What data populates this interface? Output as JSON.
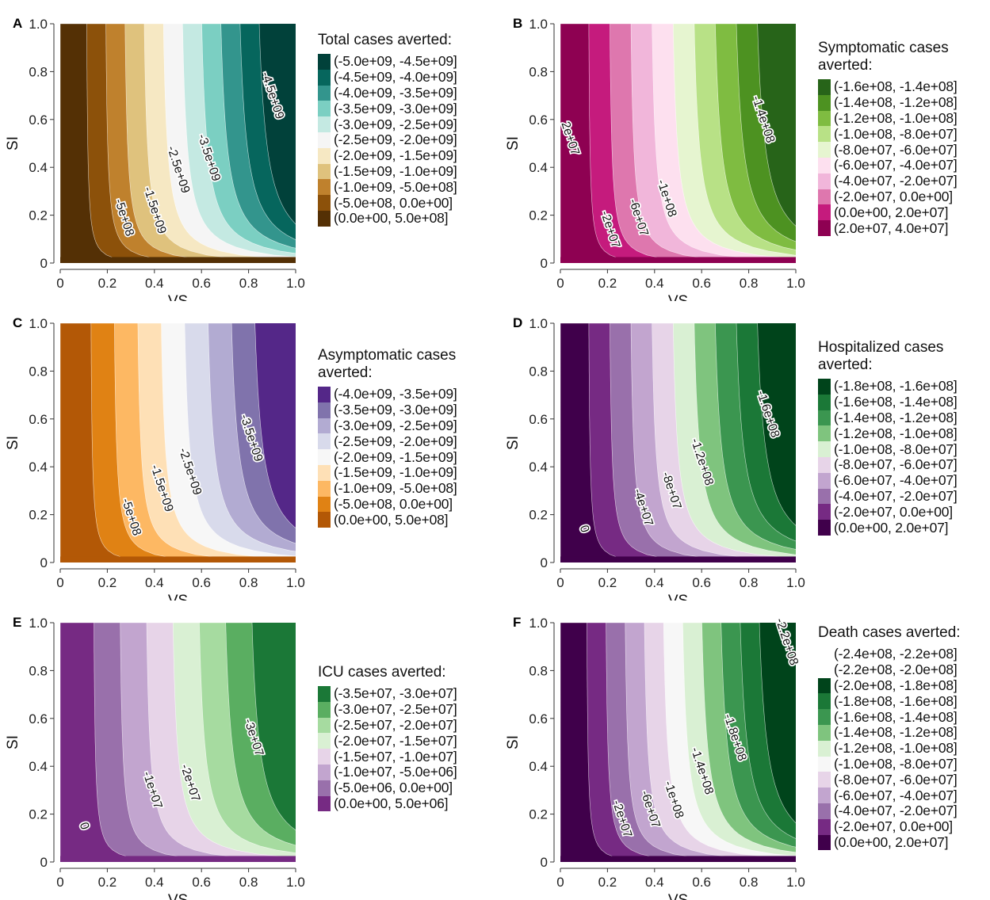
{
  "chart_data": [
    {
      "panel": "A",
      "type": "contour",
      "xlabel": "VS",
      "ylabel": "SI",
      "xlim": [
        0,
        1
      ],
      "ylim": [
        0,
        1
      ],
      "x_ticks": [
        "0",
        "0.2",
        "0.4",
        "0.6",
        "0.8",
        "1.0"
      ],
      "y_ticks": [
        "0",
        "0.2",
        "0.4",
        "0.6",
        "0.8",
        "1.0"
      ],
      "legend_title": "Total cases averted:",
      "legend": [
        {
          "label": "(-5.0e+09, -4.5e+09]",
          "color": "#01413a"
        },
        {
          "label": "(-4.5e+09, -4.0e+09]",
          "color": "#06665d"
        },
        {
          "label": "(-4.0e+09, -3.5e+09]",
          "color": "#33958d"
        },
        {
          "label": "(-3.5e+09, -3.0e+09]",
          "color": "#7bcfc2"
        },
        {
          "label": "(-3.0e+09, -2.5e+09]",
          "color": "#c4e9e2"
        },
        {
          "label": "(-2.5e+09, -2.0e+09]",
          "color": "#f5f5f5"
        },
        {
          "label": "(-2.0e+09, -1.5e+09]",
          "color": "#f6e8c3"
        },
        {
          "label": "(-1.5e+09, -1.0e+09]",
          "color": "#dfc27d"
        },
        {
          "label": "(-1.0e+09, -5.0e+08]",
          "color": "#bf812d"
        },
        {
          "label": "(-5.0e+08, 0.0e+00]",
          "color": "#8c510a"
        },
        {
          "label": "(0.0e+00, 5.0e+08]",
          "color": "#543005"
        }
      ],
      "contour_labels": [
        {
          "text": "-5e+08",
          "vs": 0.27,
          "si": 0.19
        },
        {
          "text": "-1.5e+09",
          "vs": 0.4,
          "si": 0.22
        },
        {
          "text": "-2.5e+09",
          "vs": 0.5,
          "si": 0.39
        },
        {
          "text": "-3.5e+09",
          "vs": 0.63,
          "si": 0.44
        },
        {
          "text": "-4.5e+09",
          "vs": 0.9,
          "si": 0.7
        }
      ]
    },
    {
      "panel": "B",
      "type": "contour",
      "xlabel": "VS",
      "ylabel": "SI",
      "xlim": [
        0,
        1
      ],
      "ylim": [
        0,
        1
      ],
      "x_ticks": [
        "0",
        "0.2",
        "0.4",
        "0.6",
        "0.8",
        "1.0"
      ],
      "y_ticks": [
        "0",
        "0.2",
        "0.4",
        "0.6",
        "0.8",
        "1.0"
      ],
      "legend_title": "Symptomatic cases averted:",
      "legend": [
        {
          "label": "(-1.6e+08, -1.4e+08]",
          "color": "#276419"
        },
        {
          "label": "(-1.4e+08, -1.2e+08]",
          "color": "#4d9221"
        },
        {
          "label": "(-1.2e+08, -1.0e+08]",
          "color": "#7fbc41"
        },
        {
          "label": "(-1.0e+08, -8.0e+07]",
          "color": "#b8e186"
        },
        {
          "label": "(-8.0e+07, -6.0e+07]",
          "color": "#e6f5d0"
        },
        {
          "label": "(-6.0e+07, -4.0e+07]",
          "color": "#fde0ef"
        },
        {
          "label": "(-4.0e+07, -2.0e+07]",
          "color": "#f1b6da"
        },
        {
          "label": "(-2.0e+07, 0.0e+00]",
          "color": "#de77ae"
        },
        {
          "label": "(0.0e+00, 2.0e+07]",
          "color": "#c51b7d"
        },
        {
          "label": "(2.0e+07, 4.0e+07]",
          "color": "#8e0152"
        }
      ],
      "contour_labels": [
        {
          "text": "2e+07",
          "vs": 0.04,
          "si": 0.52
        },
        {
          "text": "-2e+07",
          "vs": 0.21,
          "si": 0.14
        },
        {
          "text": "-6e+07",
          "vs": 0.33,
          "si": 0.19
        },
        {
          "text": "-1e+08",
          "vs": 0.45,
          "si": 0.27
        },
        {
          "text": "-1.4e+08",
          "vs": 0.86,
          "si": 0.6
        }
      ]
    },
    {
      "panel": "C",
      "type": "contour",
      "xlabel": "VS",
      "ylabel": "SI",
      "xlim": [
        0,
        1
      ],
      "ylim": [
        0,
        1
      ],
      "x_ticks": [
        "0",
        "0.2",
        "0.4",
        "0.6",
        "0.8",
        "1.0"
      ],
      "y_ticks": [
        "0",
        "0.2",
        "0.4",
        "0.6",
        "0.8",
        "1.0"
      ],
      "legend_title": "Asymptomatic cases averted:",
      "legend": [
        {
          "label": "(-4.0e+09, -3.5e+09]",
          "color": "#542788"
        },
        {
          "label": "(-3.5e+09, -3.0e+09]",
          "color": "#8073ac"
        },
        {
          "label": "(-3.0e+09, -2.5e+09]",
          "color": "#b2abd2"
        },
        {
          "label": "(-2.5e+09, -2.0e+09]",
          "color": "#d8daeb"
        },
        {
          "label": "(-2.0e+09, -1.5e+09]",
          "color": "#f7f7f7"
        },
        {
          "label": "(-1.5e+09, -1.0e+09]",
          "color": "#fee0b6"
        },
        {
          "label": "(-1.0e+09, -5.0e+08]",
          "color": "#fdb863"
        },
        {
          "label": "(-5.0e+08, 0.0e+00]",
          "color": "#e08214"
        },
        {
          "label": "(0.0e+00, 5.0e+08]",
          "color": "#b35806"
        }
      ],
      "contour_labels": [
        {
          "text": "-5e+08",
          "vs": 0.3,
          "si": 0.19
        },
        {
          "text": "-1.5e+09",
          "vs": 0.43,
          "si": 0.31
        },
        {
          "text": "-2.5e+09",
          "vs": 0.55,
          "si": 0.38
        },
        {
          "text": "-3.5e+09",
          "vs": 0.81,
          "si": 0.52
        }
      ]
    },
    {
      "panel": "D",
      "type": "contour",
      "xlabel": "VS",
      "ylabel": "SI",
      "xlim": [
        0,
        1
      ],
      "ylim": [
        0,
        1
      ],
      "x_ticks": [
        "0",
        "0.2",
        "0.4",
        "0.6",
        "0.8",
        "1.0"
      ],
      "y_ticks": [
        "0",
        "0.2",
        "0.4",
        "0.6",
        "0.8",
        "1.0"
      ],
      "legend_title": "Hospitalized cases averted:",
      "legend": [
        {
          "label": "(-1.8e+08, -1.6e+08]",
          "color": "#00441b"
        },
        {
          "label": "(-1.6e+08, -1.4e+08]",
          "color": "#1b7837"
        },
        {
          "label": "(-1.4e+08, -1.2e+08]",
          "color": "#3b9650"
        },
        {
          "label": "(-1.2e+08, -1.0e+08]",
          "color": "#7fc47e"
        },
        {
          "label": "(-1.0e+08, -8.0e+07]",
          "color": "#d9f0d3"
        },
        {
          "label": "(-8.0e+07, -6.0e+07]",
          "color": "#e7d4e8"
        },
        {
          "label": "(-6.0e+07, -4.0e+07]",
          "color": "#c2a5cf"
        },
        {
          "label": "(-4.0e+07, -2.0e+07]",
          "color": "#9970ab"
        },
        {
          "label": "(-2.0e+07, 0.0e+00]",
          "color": "#762a83"
        },
        {
          "label": "(0.0e+00, 2.0e+07]",
          "color": "#40004b"
        }
      ],
      "contour_labels": [
        {
          "text": "0",
          "vs": 0.1,
          "si": 0.14
        },
        {
          "text": "-4e+07",
          "vs": 0.35,
          "si": 0.23
        },
        {
          "text": "-8e+07",
          "vs": 0.47,
          "si": 0.3
        },
        {
          "text": "-1.2e+08",
          "vs": 0.6,
          "si": 0.42
        },
        {
          "text": "-1.6e+08",
          "vs": 0.88,
          "si": 0.62
        }
      ]
    },
    {
      "panel": "E",
      "type": "contour",
      "xlabel": "VS",
      "ylabel": "SI",
      "xlim": [
        0,
        1
      ],
      "ylim": [
        0,
        1
      ],
      "x_ticks": [
        "0",
        "0.2",
        "0.4",
        "0.6",
        "0.8",
        "1.0"
      ],
      "y_ticks": [
        "0",
        "0.2",
        "0.4",
        "0.6",
        "0.8",
        "1.0"
      ],
      "legend_title": "ICU cases averted:",
      "legend": [
        {
          "label": "(-3.5e+07, -3.0e+07]",
          "color": "#1b7837"
        },
        {
          "label": "(-3.0e+07, -2.5e+07]",
          "color": "#5aae61"
        },
        {
          "label": "(-2.5e+07, -2.0e+07]",
          "color": "#a6dba0"
        },
        {
          "label": "(-2.0e+07, -1.5e+07]",
          "color": "#d9f0d3"
        },
        {
          "label": "(-1.5e+07, -1.0e+07]",
          "color": "#e7d4e8"
        },
        {
          "label": "(-1.0e+07, -5.0e+06]",
          "color": "#c2a5cf"
        },
        {
          "label": "(-5.0e+06, 0.0e+00]",
          "color": "#9970ab"
        },
        {
          "label": "(0.0e+00, 5.0e+06]",
          "color": "#762a83"
        }
      ],
      "contour_labels": [
        {
          "text": "0",
          "vs": 0.1,
          "si": 0.15
        },
        {
          "text": "-1e+07",
          "vs": 0.39,
          "si": 0.3
        },
        {
          "text": "-2e+07",
          "vs": 0.55,
          "si": 0.33
        },
        {
          "text": "-3e+07",
          "vs": 0.82,
          "si": 0.52
        }
      ]
    },
    {
      "panel": "F",
      "type": "contour",
      "xlabel": "VS",
      "ylabel": "SI",
      "xlim": [
        0,
        1
      ],
      "ylim": [
        0,
        1
      ],
      "x_ticks": [
        "0",
        "0.2",
        "0.4",
        "0.6",
        "0.8",
        "1.0"
      ],
      "y_ticks": [
        "0",
        "0.2",
        "0.4",
        "0.6",
        "0.8",
        "1.0"
      ],
      "legend_title": "Death cases averted:",
      "legend": [
        {
          "label": "(-2.4e+08, -2.2e+08]",
          "color": "#ffffff"
        },
        {
          "label": "(-2.2e+08, -2.0e+08]",
          "color": "#ffffff"
        },
        {
          "label": "(-2.0e+08, -1.8e+08]",
          "color": "#00441b"
        },
        {
          "label": "(-1.8e+08, -1.6e+08]",
          "color": "#1b7837"
        },
        {
          "label": "(-1.6e+08, -1.4e+08]",
          "color": "#3b9650"
        },
        {
          "label": "(-1.4e+08, -1.2e+08]",
          "color": "#7fc47e"
        },
        {
          "label": "(-1.2e+08, -1.0e+08]",
          "color": "#d9f0d3"
        },
        {
          "label": "(-1.0e+08, -8.0e+07]",
          "color": "#f7f7f7"
        },
        {
          "label": "(-8.0e+07, -6.0e+07]",
          "color": "#e7d4e8"
        },
        {
          "label": "(-6.0e+07, -4.0e+07]",
          "color": "#c2a5cf"
        },
        {
          "label": "(-4.0e+07, -2.0e+07]",
          "color": "#9970ab"
        },
        {
          "label": "(-2.0e+07, 0.0e+00]",
          "color": "#762a83"
        },
        {
          "label": "(0.0e+00, 2.0e+07]",
          "color": "#40004b"
        }
      ],
      "contour_labels": [
        {
          "text": "-2e+07",
          "vs": 0.26,
          "si": 0.18
        },
        {
          "text": "-6e+07",
          "vs": 0.38,
          "si": 0.22
        },
        {
          "text": "-1e+08",
          "vs": 0.48,
          "si": 0.26
        },
        {
          "text": "-1.4e+08",
          "vs": 0.6,
          "si": 0.38
        },
        {
          "text": "-1.8e+08",
          "vs": 0.74,
          "si": 0.52
        },
        {
          "text": "-2.2e+08",
          "vs": 0.96,
          "si": 0.92
        }
      ]
    }
  ]
}
